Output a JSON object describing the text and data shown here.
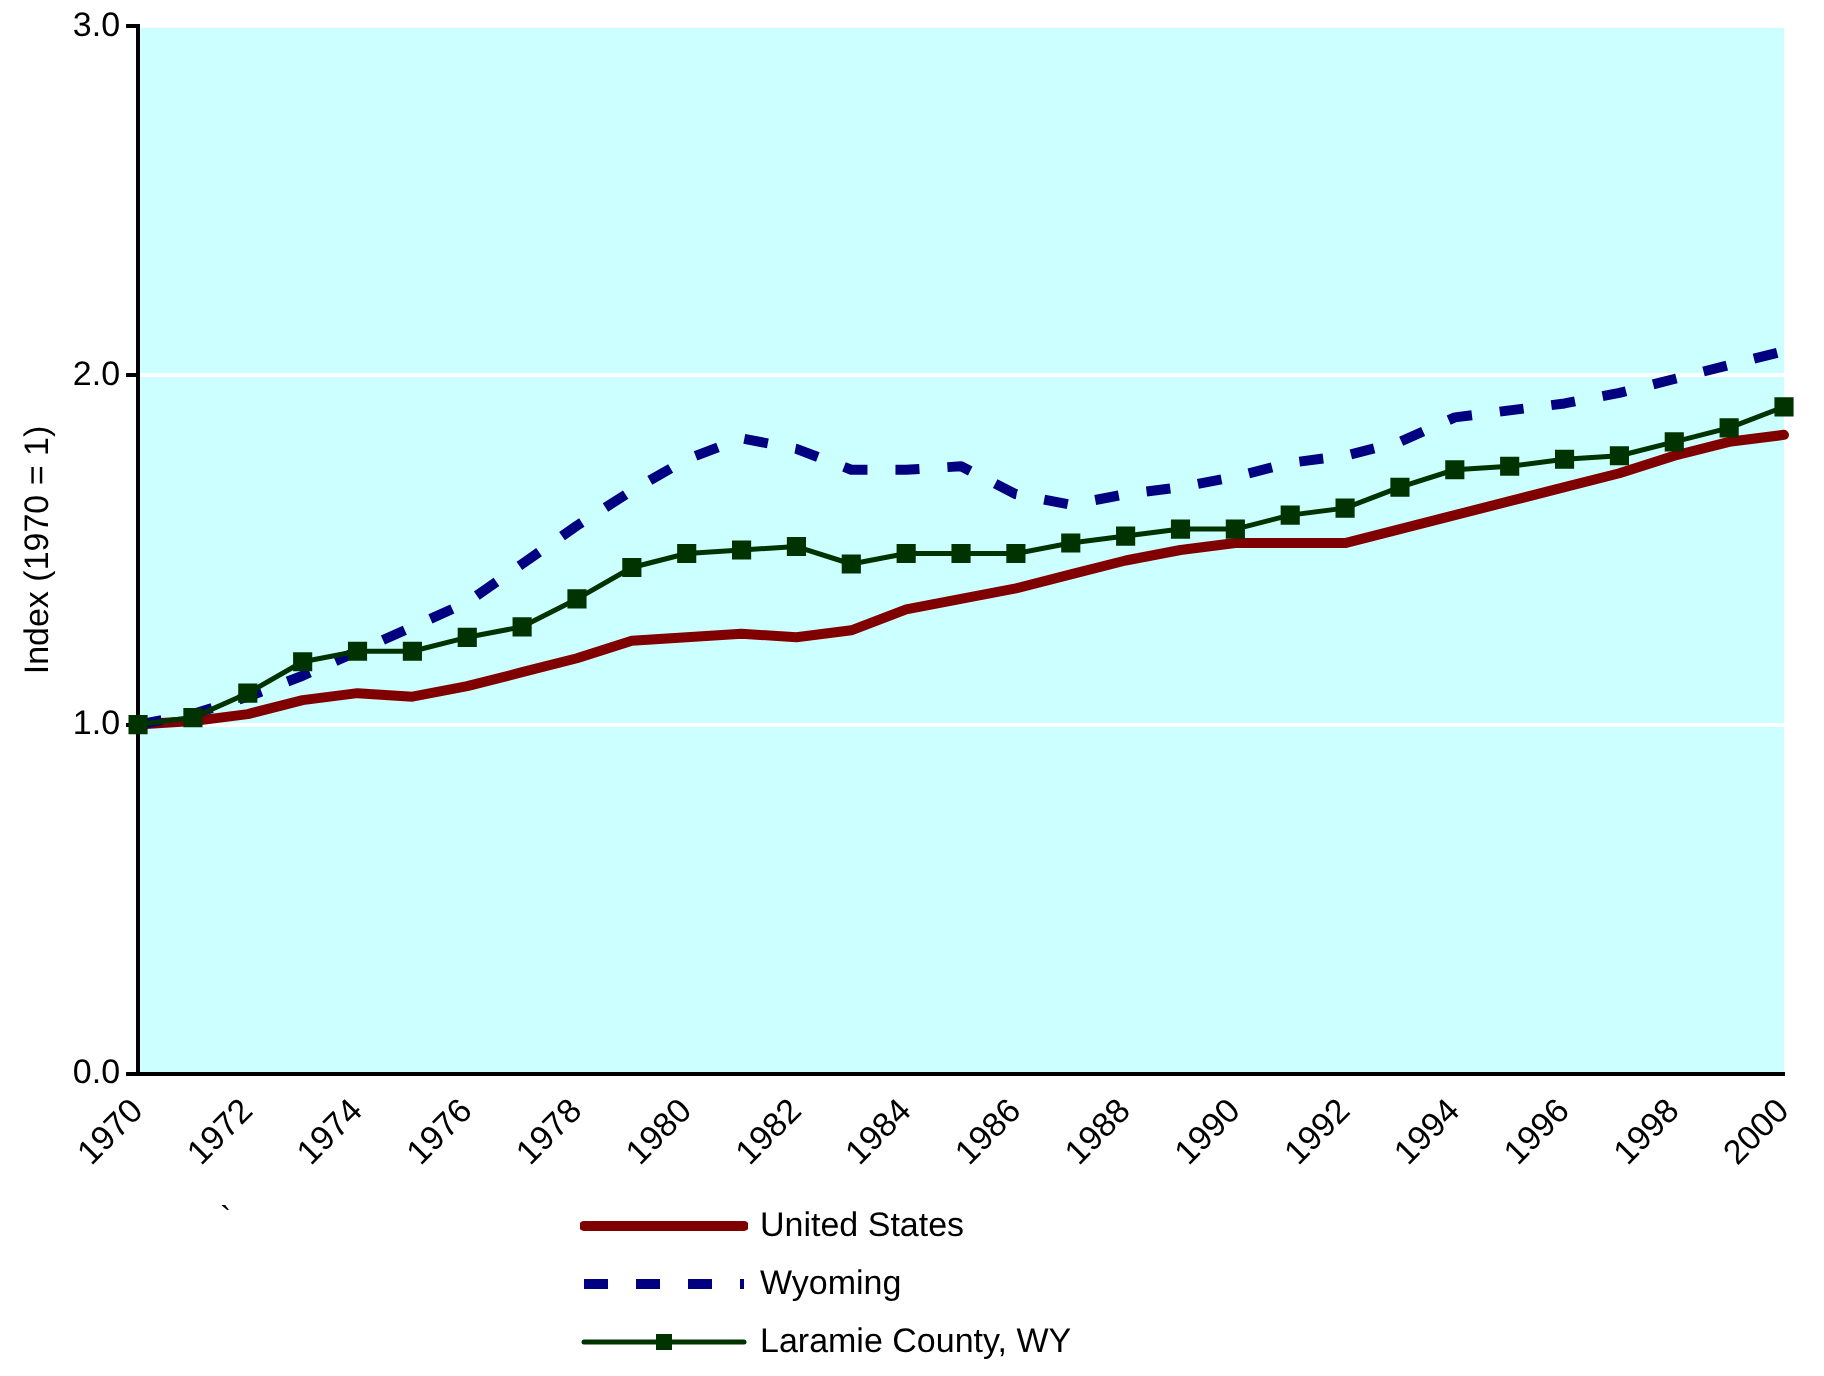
{
  "chart_data": {
    "type": "line",
    "ylabel": "Index (1970 = 1)",
    "categories": [
      "1970",
      null,
      "1972",
      null,
      "1974",
      null,
      "1976",
      null,
      "1978",
      null,
      "1980",
      null,
      "1982",
      null,
      "1984",
      null,
      "1986",
      null,
      "1988",
      null,
      "1990",
      null,
      "1992",
      null,
      "1994",
      null,
      "1996",
      null,
      "1998",
      null,
      "2000"
    ],
    "series": [
      {
        "name": "United States",
        "color": "#800000",
        "line_style": "solid",
        "marker": "none",
        "values": [
          1.0,
          1.01,
          1.03,
          1.07,
          1.09,
          1.08,
          1.11,
          1.15,
          1.19,
          1.24,
          1.25,
          1.26,
          1.25,
          1.27,
          1.33,
          1.36,
          1.39,
          1.43,
          1.47,
          1.5,
          1.52,
          1.52,
          1.52,
          1.56,
          1.6,
          1.64,
          1.68,
          1.72,
          1.77,
          1.81,
          1.83
        ]
      },
      {
        "name": "Wyoming",
        "color": "#000080",
        "line_style": "dashed",
        "marker": "none",
        "values": [
          1.0,
          1.03,
          1.08,
          1.14,
          1.21,
          1.28,
          1.35,
          1.46,
          1.57,
          1.67,
          1.76,
          1.82,
          1.79,
          1.73,
          1.73,
          1.74,
          1.66,
          1.63,
          1.66,
          1.68,
          1.71,
          1.75,
          1.77,
          1.81,
          1.88,
          1.9,
          1.92,
          1.95,
          1.99,
          2.03,
          2.07
        ]
      },
      {
        "name": "Laramie County, WY",
        "color": "#003300",
        "line_style": "solid",
        "marker": "square",
        "values": [
          1.0,
          1.02,
          1.09,
          1.18,
          1.21,
          1.21,
          1.25,
          1.28,
          1.36,
          1.45,
          1.49,
          1.5,
          1.51,
          1.46,
          1.49,
          1.49,
          1.49,
          1.52,
          1.54,
          1.56,
          1.56,
          1.6,
          1.62,
          1.68,
          1.73,
          1.74,
          1.76,
          1.77,
          1.81,
          1.85,
          1.91
        ]
      }
    ],
    "ylim": [
      0,
      3
    ],
    "yticks": [
      {
        "value": 0,
        "label": "0.0"
      },
      {
        "value": 1,
        "label": "1.0"
      },
      {
        "value": 2,
        "label": "2.0"
      },
      {
        "value": 3,
        "label": "3.0"
      }
    ],
    "grid": "y",
    "legend": "bottom",
    "annotations": [
      "`"
    ]
  }
}
